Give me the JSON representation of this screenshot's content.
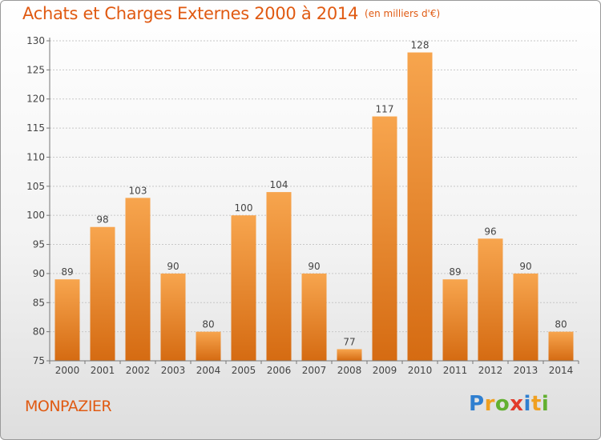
{
  "header": {
    "title": "Achats et Charges Externes 2000 à 2014",
    "unit": "(en milliers d'€)"
  },
  "footer": {
    "commune": "MONPAZIER",
    "logo_letters": [
      "P",
      "r",
      "o",
      "x",
      "i",
      "t",
      "i"
    ],
    "logo_colors": [
      "#2f7fd0",
      "#f0a020",
      "#62b030",
      "#e23a2a",
      "#2f7fd0",
      "#f0a020",
      "#62b030"
    ]
  },
  "colors": {
    "bar_light": "#f7a54e",
    "bar_dark": "#d56b12",
    "title": "#e05a12"
  },
  "chart_data": {
    "type": "bar",
    "categories": [
      "2000",
      "2001",
      "2002",
      "2003",
      "2004",
      "2005",
      "2006",
      "2007",
      "2008",
      "2009",
      "2010",
      "2011",
      "2012",
      "2013",
      "2014"
    ],
    "values": [
      89,
      98,
      103,
      90,
      80,
      100,
      104,
      90,
      77,
      117,
      128,
      89,
      96,
      90,
      80
    ],
    "ylim": [
      75,
      130
    ],
    "yticks": [
      75,
      80,
      85,
      90,
      95,
      100,
      105,
      110,
      115,
      120,
      125,
      130
    ],
    "grid": true,
    "data_labels": true
  }
}
